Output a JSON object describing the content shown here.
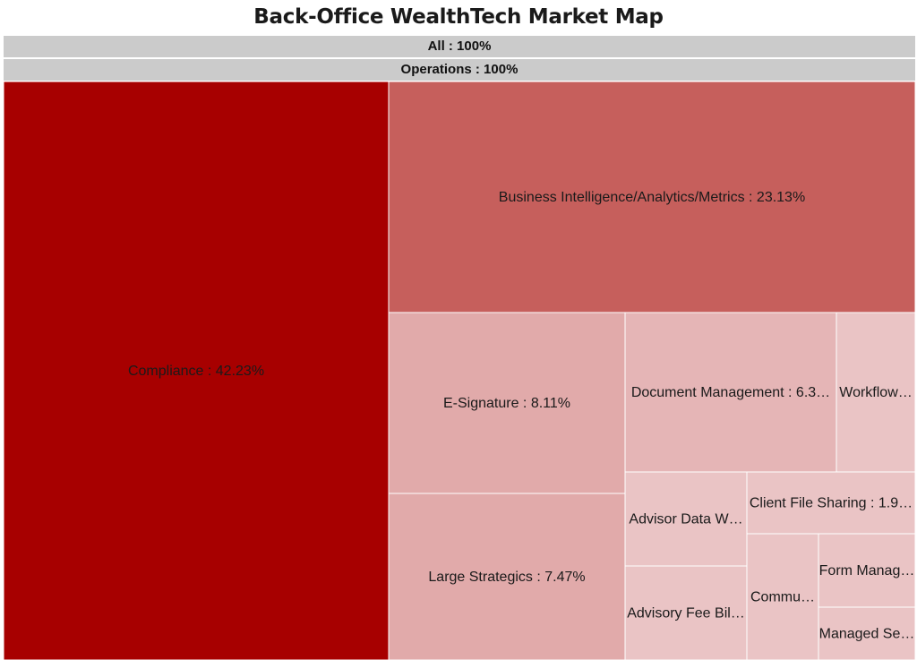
{
  "chart_data": {
    "type": "treemap",
    "title": "Back-Office WealthTech Market Map",
    "breadcrumbs": [
      "All : 100%",
      "Operations : 100%"
    ],
    "colors": {
      "high": "#a70000",
      "mid": "#c65f5c",
      "low": "#e1aaaa",
      "lowest": "#eac4c5",
      "breadcrumb": "#cbcbcb"
    },
    "items": [
      {
        "name": "Compliance",
        "value": 42.23,
        "label": "Compliance : 42.23%",
        "color": "#a70000"
      },
      {
        "name": "Business Intelligence/Analytics/Metrics",
        "value": 23.13,
        "label": "Business Intelligence/Analytics/Metrics : 23.13%",
        "color": "#c65f5c"
      },
      {
        "name": "E-Signature",
        "value": 8.11,
        "label": "E-Signature : 8.11%",
        "color": "#e1aaaa"
      },
      {
        "name": "Large Strategics",
        "value": 7.47,
        "label": "Large Strategics : 7.47%",
        "color": "#e1aaaa"
      },
      {
        "name": "Document Management",
        "value": 6.3,
        "label": "Document Management : 6.3…",
        "color": "#e5b5b6"
      },
      {
        "name": "Workflow",
        "value": 3.2,
        "label": "Workflow…",
        "color": "#eac4c5"
      },
      {
        "name": "Advisor Data W",
        "value": 2.3,
        "label": "Advisor Data W…",
        "color": "#eac4c5"
      },
      {
        "name": "Advisory Fee Bil",
        "value": 2.3,
        "label": "Advisory Fee Bil…",
        "color": "#eac4c5"
      },
      {
        "name": "Client File Sharing",
        "value": 1.9,
        "label": "Client File Sharing : 1.9…",
        "color": "#eac4c5"
      },
      {
        "name": "Commu",
        "value": 1.5,
        "label": "Commu…",
        "color": "#eac4c5"
      },
      {
        "name": "Form Manag",
        "value": 0.9,
        "label": "Form Manag…",
        "color": "#eac4c5"
      },
      {
        "name": "Managed Se",
        "value": 0.7,
        "label": "Managed Se…",
        "color": "#eac4c5"
      }
    ]
  }
}
